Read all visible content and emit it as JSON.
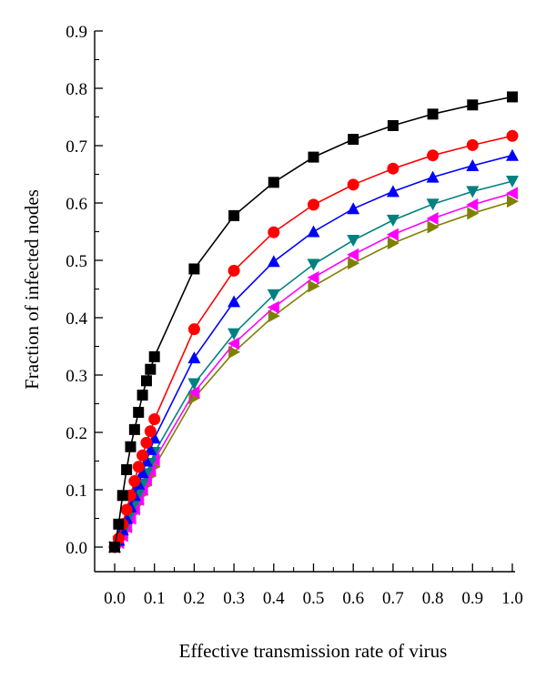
{
  "chart_data": {
    "type": "line",
    "title": "",
    "xlabel": "Effective transmission rate of virus",
    "ylabel": "Fraction of infected nodes",
    "xlim": [
      0.0,
      1.0
    ],
    "ylim": [
      0.0,
      0.9
    ],
    "x_ticks": [
      "0.0",
      "0.1",
      "0.2",
      "0.3",
      "0.4",
      "0.5",
      "0.6",
      "0.7",
      "0.8",
      "0.9",
      "1.0"
    ],
    "y_ticks": [
      "0.0",
      "0.1",
      "0.2",
      "0.3",
      "0.4",
      "0.5",
      "0.6",
      "0.7",
      "0.8",
      "0.9"
    ],
    "grid": false,
    "legend": "none",
    "x": [
      0.0,
      0.01,
      0.02,
      0.03,
      0.04,
      0.05,
      0.06,
      0.07,
      0.08,
      0.09,
      0.1,
      0.2,
      0.3,
      0.4,
      0.5,
      0.6,
      0.7,
      0.8,
      0.9,
      1.0
    ],
    "series": [
      {
        "color": "#000000",
        "marker": "square",
        "values": [
          0.0,
          0.04,
          0.09,
          0.135,
          0.175,
          0.205,
          0.235,
          0.265,
          0.29,
          0.31,
          0.332,
          0.485,
          0.578,
          0.636,
          0.68,
          0.711,
          0.735,
          0.755,
          0.771,
          0.785
        ]
      },
      {
        "color": "#ff0000",
        "marker": "circle",
        "values": [
          0.0,
          0.015,
          0.04,
          0.065,
          0.09,
          0.115,
          0.14,
          0.16,
          0.182,
          0.202,
          0.223,
          0.38,
          0.482,
          0.549,
          0.597,
          0.632,
          0.66,
          0.683,
          0.701,
          0.717
        ]
      },
      {
        "color": "#0000ff",
        "marker": "triangle-up",
        "values": [
          0.0,
          0.012,
          0.03,
          0.05,
          0.07,
          0.09,
          0.11,
          0.13,
          0.15,
          0.17,
          0.19,
          0.33,
          0.428,
          0.498,
          0.55,
          0.59,
          0.62,
          0.645,
          0.665,
          0.683
        ]
      },
      {
        "color": "#008080",
        "marker": "triangle-down",
        "values": [
          0.0,
          0.01,
          0.025,
          0.04,
          0.058,
          0.075,
          0.092,
          0.11,
          0.128,
          0.146,
          0.165,
          0.285,
          0.372,
          0.44,
          0.493,
          0.535,
          0.57,
          0.598,
          0.62,
          0.638
        ]
      },
      {
        "color": "#ff00ff",
        "marker": "triangle-left",
        "values": [
          0.0,
          0.008,
          0.02,
          0.035,
          0.05,
          0.066,
          0.083,
          0.1,
          0.117,
          0.134,
          0.152,
          0.27,
          0.355,
          0.418,
          0.47,
          0.51,
          0.545,
          0.573,
          0.597,
          0.617
        ]
      },
      {
        "color": "#808000",
        "marker": "triangle-right",
        "values": [
          0.0,
          0.006,
          0.017,
          0.03,
          0.045,
          0.06,
          0.076,
          0.092,
          0.108,
          0.124,
          0.14,
          0.26,
          0.34,
          0.403,
          0.455,
          0.495,
          0.53,
          0.558,
          0.582,
          0.603
        ]
      }
    ]
  }
}
